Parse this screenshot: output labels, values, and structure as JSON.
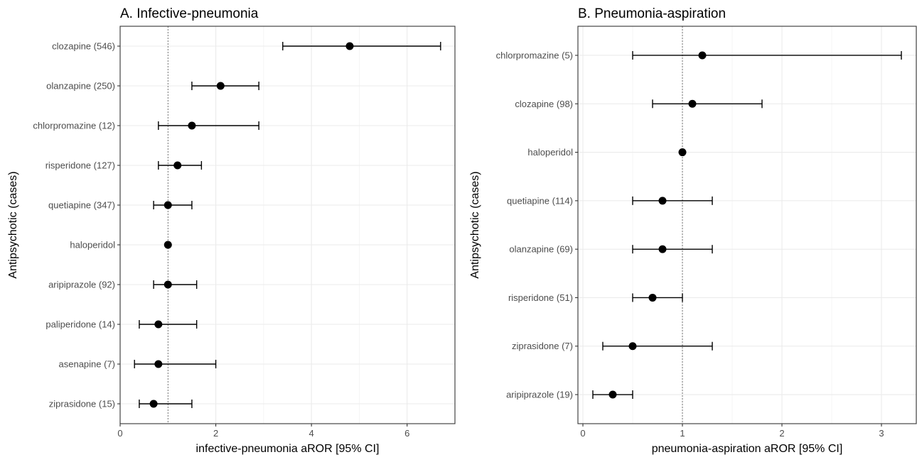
{
  "chart_data": [
    {
      "type": "scatter",
      "title": "A. Infective-pneumonia",
      "xlabel": "infective-pneumonia aROR [95% CI]",
      "ylabel": "Antipsychotic (cases)",
      "xlim": [
        0,
        7.0
      ],
      "x_ticks": [
        0,
        2,
        4,
        6
      ],
      "reference_line": 1,
      "grid": true,
      "categories": [
        "clozapine (546)",
        "olanzapine (250)",
        "chlorpromazine (12)",
        "risperidone (127)",
        "quetiapine (347)",
        "haloperidol",
        "aripiprazole (92)",
        "paliperidone (14)",
        "asenapine (7)",
        "ziprasidone (15)"
      ],
      "estimate": [
        4.8,
        2.1,
        1.5,
        1.2,
        1.0,
        1.0,
        1.0,
        0.8,
        0.8,
        0.7
      ],
      "ci_low": [
        3.4,
        1.5,
        0.8,
        0.8,
        0.7,
        null,
        0.7,
        0.4,
        0.3,
        0.4
      ],
      "ci_high": [
        6.7,
        2.9,
        2.9,
        1.7,
        1.5,
        null,
        1.6,
        1.6,
        2.0,
        1.5
      ]
    },
    {
      "type": "scatter",
      "title": "B. Pneumonia-aspiration",
      "xlabel": "pneumonia-aspiration aROR [95% CI]",
      "ylabel": "Antipsychotic (cases)",
      "xlim": [
        -0.05,
        3.35
      ],
      "x_ticks": [
        0,
        1,
        2,
        3
      ],
      "reference_line": 1,
      "grid": true,
      "categories": [
        "chlorpromazine  (5)",
        "clozapine (98)",
        "haloperidol",
        "quetiapine  (114)",
        "olanzapine (69)",
        "risperidone (51)",
        "ziprasidone (7)",
        "aripiprazole (19)"
      ],
      "estimate": [
        1.2,
        1.1,
        1.0,
        0.8,
        0.8,
        0.7,
        0.5,
        0.3
      ],
      "ci_low": [
        0.5,
        0.7,
        null,
        0.5,
        0.5,
        0.5,
        0.2,
        0.1
      ],
      "ci_high": [
        3.2,
        1.8,
        null,
        1.3,
        1.3,
        1.0,
        1.3,
        0.5
      ]
    }
  ]
}
